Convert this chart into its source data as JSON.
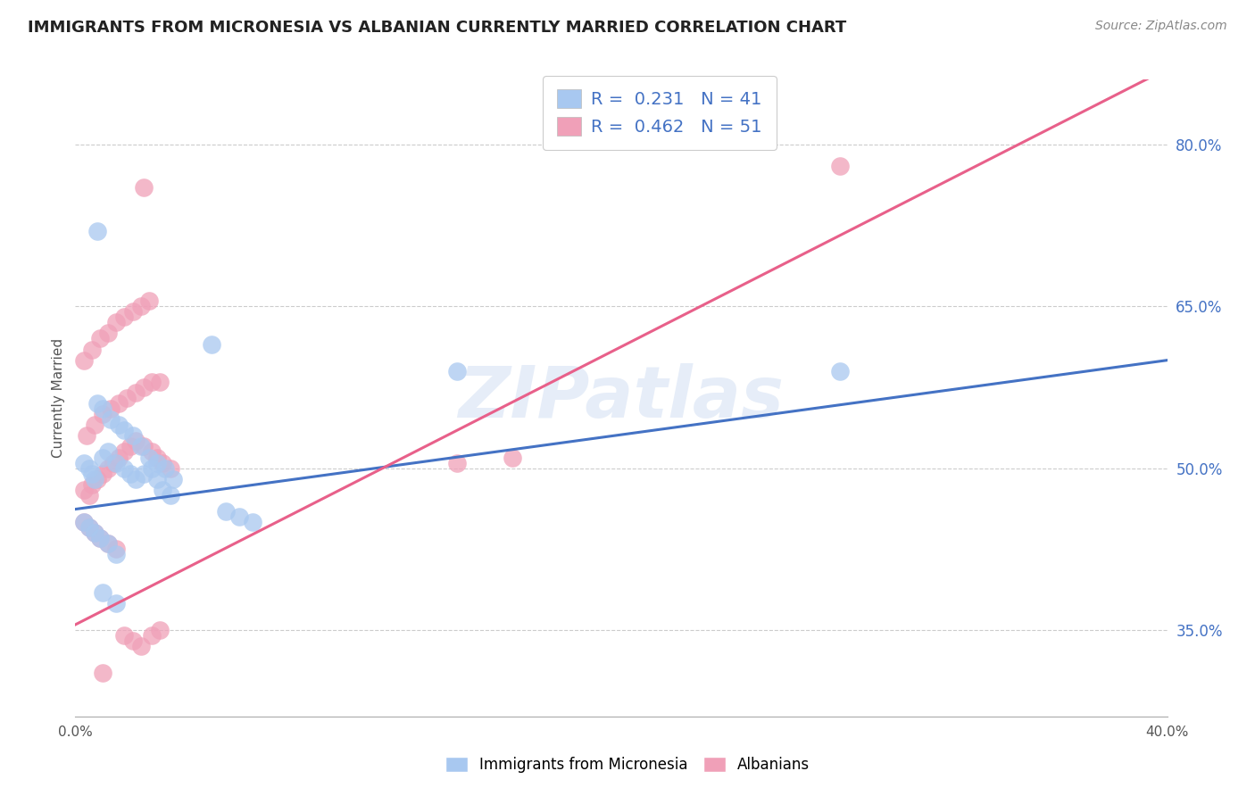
{
  "title": "IMMIGRANTS FROM MICRONESIA VS ALBANIAN CURRENTLY MARRIED CORRELATION CHART",
  "source": "Source: ZipAtlas.com",
  "ylabel": "Currently Married",
  "xlim": [
    0.0,
    0.4
  ],
  "ylim": [
    0.27,
    0.86
  ],
  "yticks": [
    0.35,
    0.5,
    0.65,
    0.8
  ],
  "ytick_labels": [
    "35.0%",
    "50.0%",
    "65.0%",
    "80.0%"
  ],
  "xtick_positions": [
    0.0,
    0.1,
    0.2,
    0.3,
    0.4
  ],
  "xtick_labels": [
    "0.0%",
    "",
    "",
    "",
    "40.0%"
  ],
  "blue_R": "0.231",
  "blue_N": "41",
  "pink_R": "0.462",
  "pink_N": "51",
  "legend_label_blue": "Immigrants from Micronesia",
  "legend_label_pink": "Albanians",
  "blue_color": "#a8c8f0",
  "pink_color": "#f0a0b8",
  "blue_line_color": "#4472c4",
  "pink_line_color": "#e8608a",
  "number_color": "#4472c4",
  "watermark": "ZIPatlas",
  "blue_line_y0": 0.462,
  "blue_line_y1": 0.6,
  "pink_line_y0": 0.355,
  "pink_line_y1": 0.87,
  "blue_scatter_x": [
    0.008,
    0.003,
    0.005,
    0.006,
    0.007,
    0.01,
    0.012,
    0.015,
    0.018,
    0.02,
    0.022,
    0.025,
    0.028,
    0.03,
    0.032,
    0.035,
    0.008,
    0.01,
    0.013,
    0.016,
    0.018,
    0.021,
    0.024,
    0.027,
    0.03,
    0.033,
    0.036,
    0.003,
    0.005,
    0.007,
    0.009,
    0.012,
    0.015,
    0.14,
    0.28,
    0.01,
    0.015,
    0.05,
    0.055,
    0.06,
    0.065
  ],
  "blue_scatter_y": [
    0.72,
    0.505,
    0.5,
    0.495,
    0.49,
    0.51,
    0.515,
    0.505,
    0.5,
    0.495,
    0.49,
    0.495,
    0.5,
    0.49,
    0.48,
    0.475,
    0.56,
    0.555,
    0.545,
    0.54,
    0.535,
    0.53,
    0.52,
    0.51,
    0.505,
    0.5,
    0.49,
    0.45,
    0.445,
    0.44,
    0.435,
    0.43,
    0.42,
    0.59,
    0.59,
    0.385,
    0.375,
    0.615,
    0.46,
    0.455,
    0.45
  ],
  "pink_scatter_x": [
    0.003,
    0.005,
    0.006,
    0.008,
    0.01,
    0.012,
    0.014,
    0.016,
    0.018,
    0.02,
    0.022,
    0.025,
    0.028,
    0.03,
    0.032,
    0.035,
    0.004,
    0.007,
    0.01,
    0.013,
    0.016,
    0.019,
    0.022,
    0.025,
    0.028,
    0.031,
    0.003,
    0.006,
    0.009,
    0.012,
    0.015,
    0.018,
    0.021,
    0.024,
    0.027,
    0.003,
    0.005,
    0.007,
    0.009,
    0.012,
    0.015,
    0.018,
    0.021,
    0.024,
    0.025,
    0.028,
    0.031,
    0.14,
    0.16,
    0.01,
    0.28
  ],
  "pink_scatter_y": [
    0.48,
    0.475,
    0.485,
    0.49,
    0.495,
    0.5,
    0.505,
    0.51,
    0.515,
    0.52,
    0.525,
    0.52,
    0.515,
    0.51,
    0.505,
    0.5,
    0.53,
    0.54,
    0.55,
    0.555,
    0.56,
    0.565,
    0.57,
    0.575,
    0.58,
    0.58,
    0.6,
    0.61,
    0.62,
    0.625,
    0.635,
    0.64,
    0.645,
    0.65,
    0.655,
    0.45,
    0.445,
    0.44,
    0.435,
    0.43,
    0.425,
    0.345,
    0.34,
    0.335,
    0.76,
    0.345,
    0.35,
    0.505,
    0.51,
    0.31,
    0.78
  ]
}
